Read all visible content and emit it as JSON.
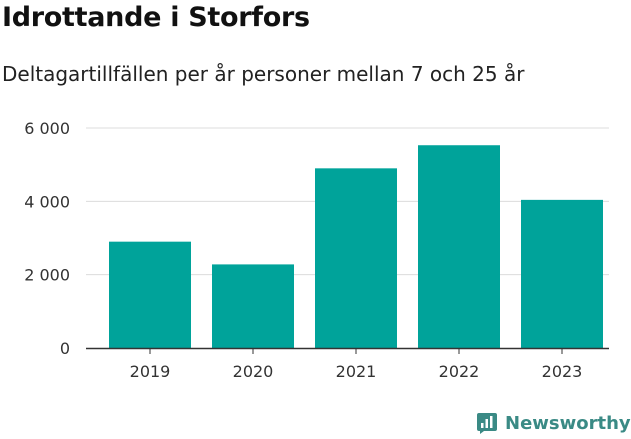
{
  "chart_data": {
    "type": "bar",
    "title": "Idrottande i Storfors",
    "subtitle": "Deltagartillfällen per år personer mellan 7 och 25 år",
    "categories": [
      "2019",
      "2020",
      "2021",
      "2022",
      "2023"
    ],
    "values": [
      2900,
      2280,
      4900,
      5530,
      4040
    ],
    "ylim": [
      0,
      6000
    ],
    "yticks": [
      0,
      2000,
      4000,
      6000
    ],
    "ytick_labels": [
      "0",
      "2 000",
      "4 000",
      "6 000"
    ],
    "grid": true,
    "bar_color": "#00a39a",
    "xlabel": "",
    "ylabel": ""
  },
  "brand": {
    "name": "Newsworthy",
    "color": "#3a8a85",
    "icon": "newsworthy-logo-icon"
  }
}
